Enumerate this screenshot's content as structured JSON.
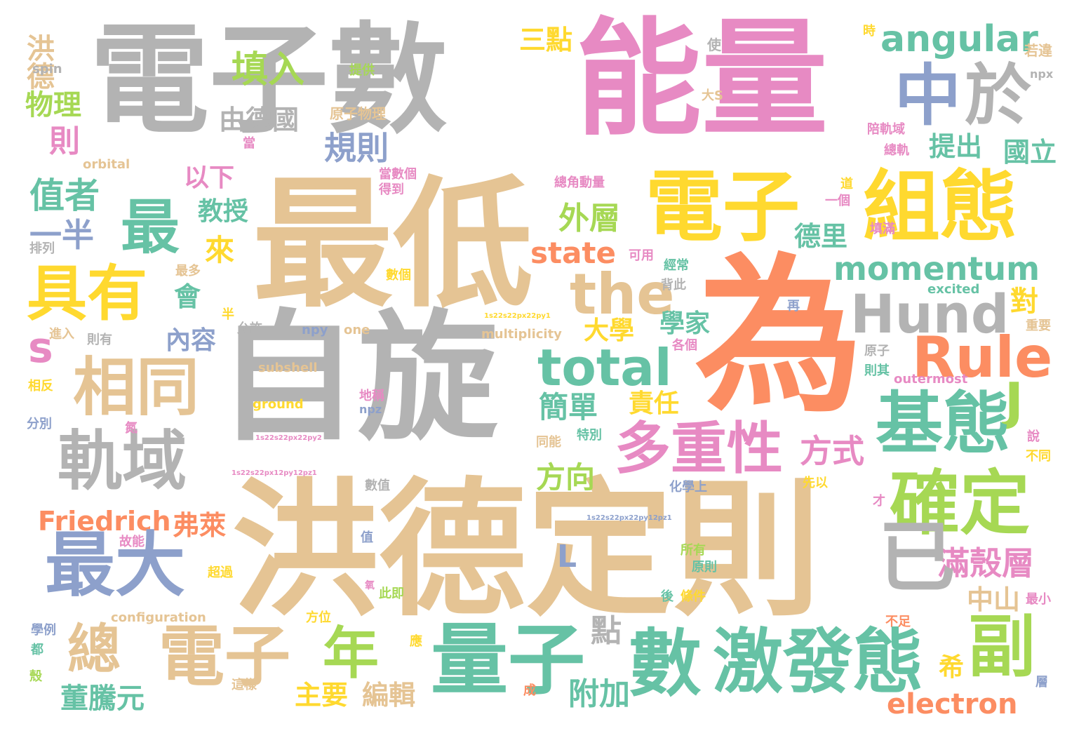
{
  "palette": {
    "gray": "#b3b3b3",
    "pink": "#e78ac3",
    "tan": "#e5c494",
    "orange": "#fc8d62",
    "green": "#66c2a5",
    "blue": "#8da0cb",
    "yellow": "#ffd92f",
    "lime": "#a6d854"
  },
  "words": [
    {
      "text": "電子數",
      "color": "gray"
    },
    {
      "text": "能量",
      "color": "pink"
    },
    {
      "text": "最低",
      "color": "tan"
    },
    {
      "text": "為",
      "color": "orange"
    },
    {
      "text": "自旋",
      "color": "gray"
    },
    {
      "text": "洪德定則",
      "color": "tan"
    },
    {
      "text": "電子",
      "color": "yellow"
    },
    {
      "text": "組態",
      "color": "yellow"
    },
    {
      "text": "中",
      "color": "blue"
    },
    {
      "text": "於",
      "color": "gray"
    },
    {
      "text": "angular",
      "color": "green"
    },
    {
      "text": "三點",
      "color": "yellow"
    },
    {
      "text": "填入",
      "color": "lime"
    },
    {
      "text": "洪德",
      "color": "tan"
    },
    {
      "text": "spin",
      "color": "gray"
    },
    {
      "text": "提供",
      "color": "lime"
    },
    {
      "text": "使",
      "color": "gray"
    },
    {
      "text": "時",
      "color": "yellow"
    },
    {
      "text": "若違",
      "color": "tan"
    },
    {
      "text": "npx",
      "color": "gray"
    },
    {
      "text": "物理",
      "color": "lime"
    },
    {
      "text": "則",
      "color": "pink"
    },
    {
      "text": "由德國",
      "color": "gray"
    },
    {
      "text": "原子物理",
      "color": "tan"
    },
    {
      "text": "大S",
      "color": "tan"
    },
    {
      "text": "規則",
      "color": "blue"
    },
    {
      "text": "提出",
      "color": "green"
    },
    {
      "text": "國立",
      "color": "green"
    },
    {
      "text": "當",
      "color": "pink"
    },
    {
      "text": "陪軌域",
      "color": "pink"
    },
    {
      "text": "總軌",
      "color": "pink"
    },
    {
      "text": "orbital",
      "color": "tan"
    },
    {
      "text": "以下",
      "color": "pink"
    },
    {
      "text": "當數個",
      "color": "pink"
    },
    {
      "text": "得到",
      "color": "pink"
    },
    {
      "text": "總角動量",
      "color": "pink"
    },
    {
      "text": "道",
      "color": "yellow"
    },
    {
      "text": "一個",
      "color": "pink"
    },
    {
      "text": "值者",
      "color": "green"
    },
    {
      "text": "最",
      "color": "green"
    },
    {
      "text": "外層",
      "color": "lime"
    },
    {
      "text": "一半",
      "color": "blue"
    },
    {
      "text": "教授",
      "color": "green"
    },
    {
      "text": "來",
      "color": "yellow"
    },
    {
      "text": "德里",
      "color": "green"
    },
    {
      "text": "填滿",
      "color": "pink"
    },
    {
      "text": "排列",
      "color": "gray"
    },
    {
      "text": "最多",
      "color": "tan"
    },
    {
      "text": "state",
      "color": "orange"
    },
    {
      "text": "可用",
      "color": "pink"
    },
    {
      "text": "經常",
      "color": "green"
    },
    {
      "text": "momentum",
      "color": "green"
    },
    {
      "text": "具有",
      "color": "yellow"
    },
    {
      "text": "the",
      "color": "tan"
    },
    {
      "text": "Hund",
      "color": "gray"
    },
    {
      "text": "數個",
      "color": "yellow"
    },
    {
      "text": "會",
      "color": "green"
    },
    {
      "text": "背此",
      "color": "gray"
    },
    {
      "text": "excited",
      "color": "green"
    },
    {
      "text": "對",
      "color": "yellow"
    },
    {
      "text": "再",
      "color": "blue"
    },
    {
      "text": "1s22s22px22py1",
      "color": "yellow"
    },
    {
      "text": "重要",
      "color": "tan"
    },
    {
      "text": "半",
      "color": "yellow"
    },
    {
      "text": "允許",
      "color": "gray"
    },
    {
      "text": "大學",
      "color": "yellow"
    },
    {
      "text": "學家",
      "color": "green"
    },
    {
      "text": "進入",
      "color": "tan"
    },
    {
      "text": "則有",
      "color": "gray"
    },
    {
      "text": "npy",
      "color": "blue"
    },
    {
      "text": "one",
      "color": "tan"
    },
    {
      "text": "multiplicity",
      "color": "tan"
    },
    {
      "text": "內容",
      "color": "blue"
    },
    {
      "text": "s",
      "color": "pink"
    },
    {
      "text": "各個",
      "color": "pink"
    },
    {
      "text": "Rule",
      "color": "orange"
    },
    {
      "text": "原子",
      "color": "gray"
    },
    {
      "text": "則其",
      "color": "green"
    },
    {
      "text": "相同",
      "color": "tan"
    },
    {
      "text": "total",
      "color": "green"
    },
    {
      "text": "subshell",
      "color": "tan"
    },
    {
      "text": "相反",
      "color": "yellow"
    },
    {
      "text": "outermost",
      "color": "pink"
    },
    {
      "text": "簡單",
      "color": "green"
    },
    {
      "text": "責任",
      "color": "yellow"
    },
    {
      "text": "J",
      "color": "lime"
    },
    {
      "text": "ground",
      "color": "yellow"
    },
    {
      "text": "分別",
      "color": "blue"
    },
    {
      "text": "地稱",
      "color": "pink"
    },
    {
      "text": "npz",
      "color": "blue"
    },
    {
      "text": "基態",
      "color": "green"
    },
    {
      "text": "軌域",
      "color": "gray"
    },
    {
      "text": "多重性",
      "color": "pink"
    },
    {
      "text": "方式",
      "color": "pink"
    },
    {
      "text": "氮",
      "color": "pink"
    },
    {
      "text": "1s22s22px22py2",
      "color": "pink"
    },
    {
      "text": "同能",
      "color": "tan"
    },
    {
      "text": "特別",
      "color": "green"
    },
    {
      "text": "說",
      "color": "pink"
    },
    {
      "text": "方向",
      "color": "lime"
    },
    {
      "text": "不同",
      "color": "yellow"
    },
    {
      "text": "1s22s22px12py12pz1",
      "color": "pink"
    },
    {
      "text": "數值",
      "color": "gray"
    },
    {
      "text": "化學上",
      "color": "blue"
    },
    {
      "text": "先以",
      "color": "yellow"
    },
    {
      "text": "確定",
      "color": "lime"
    },
    {
      "text": "Friedrich",
      "color": "orange"
    },
    {
      "text": "1s22s22px22py12pz1",
      "color": "blue"
    },
    {
      "text": "弗萊",
      "color": "orange"
    },
    {
      "text": "才",
      "color": "pink"
    },
    {
      "text": "故能",
      "color": "pink"
    },
    {
      "text": "最大",
      "color": "blue"
    },
    {
      "text": "L",
      "color": "blue"
    },
    {
      "text": "值",
      "color": "blue"
    },
    {
      "text": "所有",
      "color": "lime"
    },
    {
      "text": "滿殼層",
      "color": "pink"
    },
    {
      "text": "已",
      "color": "gray"
    },
    {
      "text": "超過",
      "color": "yellow"
    },
    {
      "text": "氧",
      "color": "pink"
    },
    {
      "text": "原則",
      "color": "green"
    },
    {
      "text": "中山",
      "color": "tan"
    },
    {
      "text": "此即",
      "color": "lime"
    },
    {
      "text": "後",
      "color": "green"
    },
    {
      "text": "條件",
      "color": "yellow"
    },
    {
      "text": "最小",
      "color": "pink"
    },
    {
      "text": "configuration",
      "color": "tan"
    },
    {
      "text": "方位",
      "color": "yellow"
    },
    {
      "text": "點",
      "color": "gray"
    },
    {
      "text": "不足",
      "color": "orange"
    },
    {
      "text": "學例",
      "color": "blue"
    },
    {
      "text": "都",
      "color": "green"
    },
    {
      "text": "總",
      "color": "tan"
    },
    {
      "text": "應",
      "color": "yellow"
    },
    {
      "text": "年",
      "color": "lime"
    },
    {
      "text": "量子",
      "color": "green"
    },
    {
      "text": "數",
      "color": "green"
    },
    {
      "text": "激發態",
      "color": "green"
    },
    {
      "text": "副",
      "color": "lime"
    },
    {
      "text": "希",
      "color": "yellow"
    },
    {
      "text": "殼",
      "color": "lime"
    },
    {
      "text": "這樣",
      "color": "tan"
    },
    {
      "text": "董騰元",
      "color": "green"
    },
    {
      "text": "主要",
      "color": "yellow"
    },
    {
      "text": "編輯",
      "color": "tan"
    },
    {
      "text": "附加",
      "color": "green"
    },
    {
      "text": "成",
      "color": "orange"
    },
    {
      "text": "electron",
      "color": "orange"
    },
    {
      "text": "層",
      "color": "blue"
    }
  ]
}
